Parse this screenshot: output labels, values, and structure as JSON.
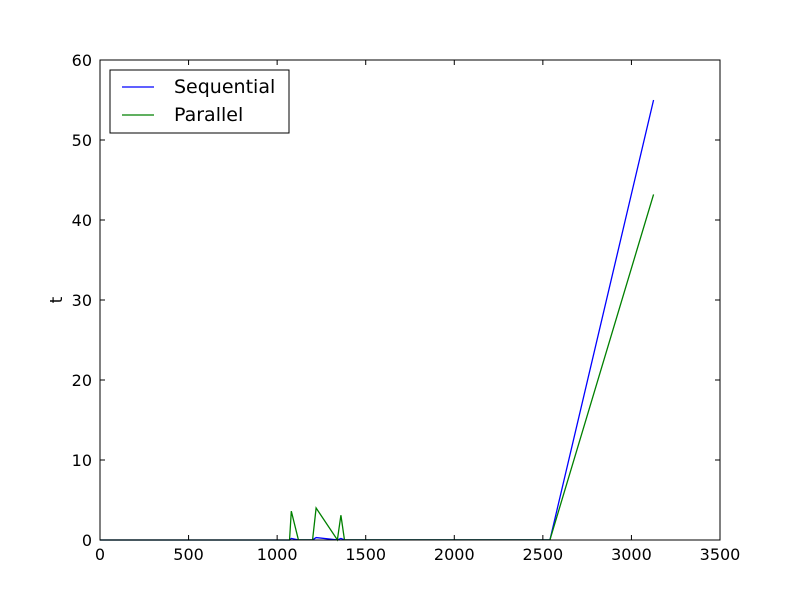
{
  "chart_data": {
    "type": "line",
    "title": "",
    "xlabel": "",
    "ylabel": "t",
    "xlim": [
      0,
      3500
    ],
    "ylim": [
      0,
      60
    ],
    "xticks": [
      0,
      500,
      1000,
      1500,
      2000,
      2500,
      3000,
      3500
    ],
    "yticks": [
      0,
      10,
      20,
      30,
      40,
      50,
      60
    ],
    "xtick_labels": [
      "0",
      "500",
      "1000",
      "1500",
      "2000",
      "2500",
      "3000",
      "3500"
    ],
    "ytick_labels": [
      "0",
      "10",
      "20",
      "30",
      "40",
      "50",
      "60"
    ],
    "grid": false,
    "legend_position": "top-left",
    "series": [
      {
        "name": "Sequential",
        "color": "#0000ff",
        "x": [
          0,
          1070,
          1080,
          1120,
          1200,
          1220,
          1340,
          1360,
          1380,
          2540,
          3125
        ],
        "y": [
          0,
          0,
          0.2,
          0.02,
          0.02,
          0.3,
          0.02,
          0.2,
          0.02,
          0.02,
          55.0
        ]
      },
      {
        "name": "Parallel",
        "color": "#008000",
        "x": [
          0,
          1070,
          1080,
          1120,
          1200,
          1220,
          1340,
          1360,
          1380,
          2540,
          3125
        ],
        "y": [
          0,
          0,
          3.6,
          0.02,
          0.02,
          4.0,
          0.02,
          3.1,
          0.02,
          0.02,
          43.2
        ]
      }
    ]
  }
}
